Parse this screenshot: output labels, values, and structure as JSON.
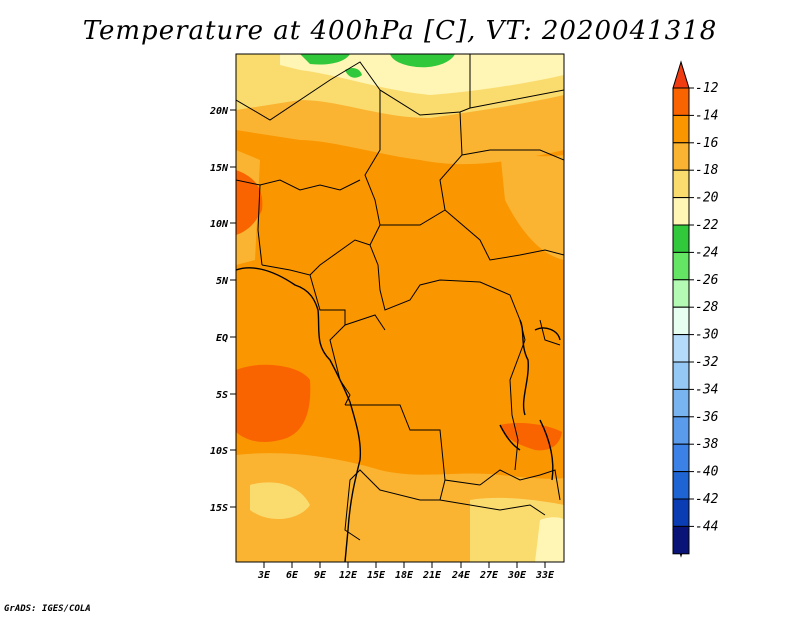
{
  "title": "Temperature at 400hPa [C], VT: 2020041318",
  "credit": "GrADS: IGES/COLA",
  "map": {
    "lat_labels": [
      "20N",
      "15N",
      "10N",
      "5N",
      "EQ",
      "5S",
      "10S",
      "15S"
    ],
    "lon_labels": [
      "3E",
      "6E",
      "9E",
      "12E",
      "15E",
      "18E",
      "21E",
      "24E",
      "27E",
      "30E",
      "33E"
    ]
  },
  "colorbar": {
    "labels": [
      "-12",
      "-14",
      "-16",
      "-18",
      "-20",
      "-22",
      "-24",
      "-26",
      "-28",
      "-30",
      "-32",
      "-34",
      "-36",
      "-38",
      "-40",
      "-42",
      "-44"
    ],
    "top_color": "#f03c10",
    "bottom_color": "#e6e6fa",
    "colors": [
      "#fa6400",
      "#fa9600",
      "#fab432",
      "#fadc6e",
      "#fff5b4",
      "#32c83c",
      "#64e664",
      "#b4fab4",
      "#e6fff0",
      "#b4dcfa",
      "#96c8f5",
      "#78b4f0",
      "#5a9ceb",
      "#3c82e6",
      "#1e64d2",
      "#0a3cb4",
      "#0a1478"
    ]
  }
}
